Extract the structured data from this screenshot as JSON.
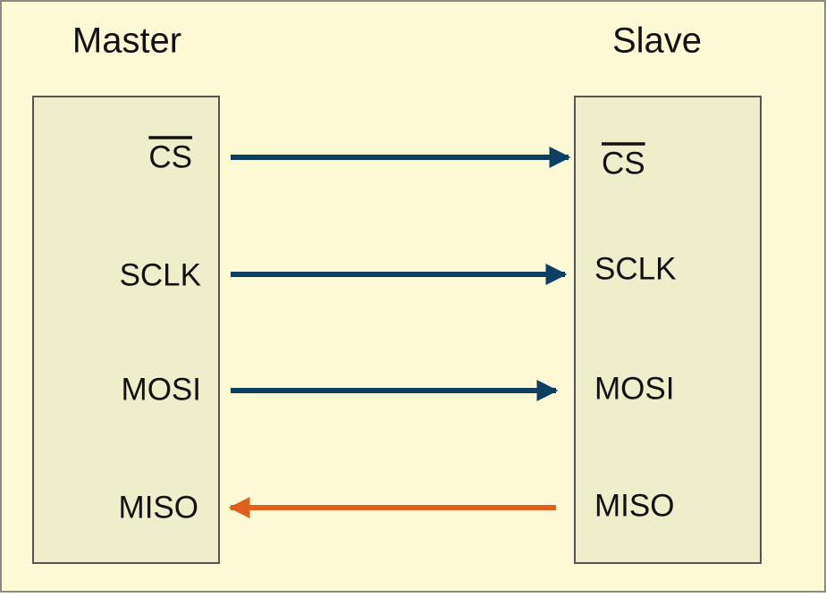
{
  "master": {
    "title": "Master",
    "signals": [
      "CS",
      "SCLK",
      "MOSI",
      "MISO"
    ]
  },
  "slave": {
    "title": "Slave",
    "signals": [
      "CS",
      "SCLK",
      "MOSI",
      "MISO"
    ]
  }
}
